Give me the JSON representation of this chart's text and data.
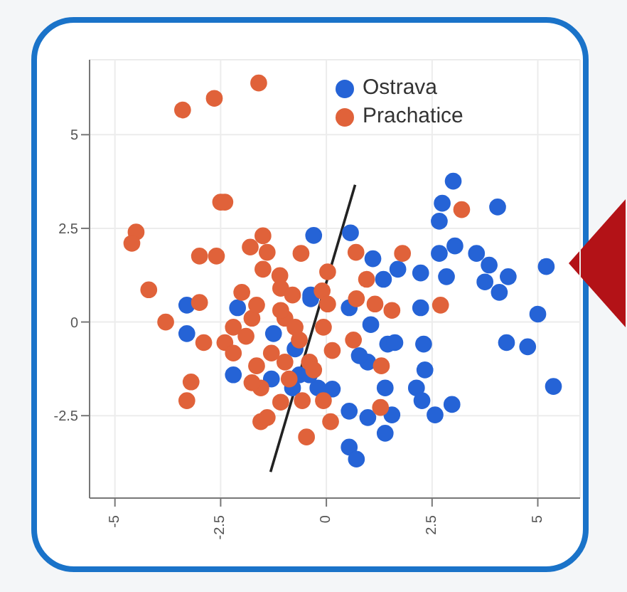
{
  "chart_data": {
    "type": "scatter",
    "legend": "top right",
    "grid": true,
    "marker": "circle",
    "xlim": [
      -5.6,
      6.0
    ],
    "ylim": [
      -4.7,
      7
    ],
    "xticks": [
      -5,
      -2.5,
      0,
      2.5,
      5
    ],
    "yticks": [
      -2.5,
      0,
      2.5,
      5
    ],
    "series": [
      {
        "name": "Ostrava",
        "color": "#2563d6",
        "x": [
          3.0,
          2.74,
          4.05,
          2.67,
          3.04,
          2.67,
          3.55,
          3.85,
          3.75,
          4.3,
          5.2,
          -0.3,
          0.57,
          1.1,
          1.69,
          1.35,
          2.23,
          2.84,
          4.09,
          2.23,
          5.0,
          4.26,
          4.76,
          5.37,
          2.3,
          2.33,
          2.13,
          2.26,
          2.97,
          2.57,
          1.39,
          1.55,
          1.39,
          0.54,
          0.71,
          0.54,
          0.98,
          1.05,
          0.54,
          1.45,
          1.62,
          0.98,
          0.78,
          0.14,
          -0.64,
          -3.3,
          -3.3,
          -2.1,
          -2.2,
          -1.3,
          -1.25,
          -0.74,
          -0.8,
          -0.37,
          -0.2,
          -0.4,
          -0.37
        ],
        "values": [
          3.76,
          3.17,
          3.07,
          2.69,
          2.03,
          1.83,
          1.83,
          1.52,
          1.07,
          1.21,
          1.48,
          2.31,
          2.38,
          1.69,
          1.41,
          1.14,
          1.31,
          1.21,
          0.79,
          0.38,
          0.21,
          -0.55,
          -0.66,
          -1.72,
          -0.59,
          -1.28,
          -1.76,
          -2.1,
          -2.2,
          -2.48,
          -1.76,
          -2.48,
          -2.97,
          -3.34,
          -3.66,
          -2.38,
          -2.55,
          -0.07,
          0.38,
          -0.59,
          -0.55,
          -1.07,
          -0.9,
          -1.79,
          -1.41,
          0.45,
          -0.31,
          0.38,
          -1.41,
          -1.52,
          -0.31,
          -0.72,
          -1.76,
          0.62,
          -1.76,
          -1.41,
          0.72
        ]
      },
      {
        "name": "Prachatice",
        "color": "#e0623a",
        "x": [
          -3.4,
          -2.65,
          -1.6,
          -2.5,
          -2.4,
          -4.5,
          -4.6,
          -3.0,
          -2.6,
          -4.2,
          -3.8,
          -2.9,
          -3.2,
          -3.3,
          -1.5,
          -1.8,
          -1.4,
          -1.5,
          -1.1,
          -1.08,
          -0.8,
          -0.6,
          -0.1,
          0.7,
          3.2,
          1.8,
          0.95,
          0.03,
          -3.0,
          -2.0,
          -1.76,
          -2.2,
          -2.4,
          -2.2,
          -1.9,
          -1.65,
          -1.55,
          -1.76,
          -1.08,
          -1.55,
          -1.4,
          -0.47,
          -0.98,
          -0.74,
          -0.64,
          -1.3,
          -0.98,
          -0.88,
          -0.57,
          -1.08,
          -1.65,
          -0.4,
          -0.07,
          1.15,
          1.55,
          0.71,
          2.7,
          1.3,
          1.28,
          0.1,
          0.64,
          0.03,
          -0.07,
          0.14,
          -0.3
        ],
        "values": [
          5.66,
          5.97,
          6.38,
          3.2,
          3.2,
          2.4,
          2.1,
          1.76,
          1.76,
          0.86,
          0,
          -0.55,
          -1.6,
          -2.1,
          2.3,
          2.0,
          1.86,
          1.41,
          1.24,
          0.9,
          0.72,
          1.83,
          0.83,
          1.86,
          3.0,
          1.83,
          1.14,
          1.34,
          0.52,
          0.79,
          0.1,
          -0.14,
          -0.55,
          -0.83,
          -0.38,
          -1.17,
          -1.76,
          -1.62,
          -2.14,
          -2.66,
          -2.55,
          -3.07,
          0.1,
          -0.14,
          -0.48,
          -0.83,
          -1.07,
          -1.52,
          -2.1,
          0.31,
          0.45,
          -1.07,
          -2.1,
          0.48,
          0.31,
          0.62,
          0.45,
          -1.17,
          -2.28,
          -2.66,
          -0.48,
          0.48,
          -0.14,
          -0.76,
          -1.28
        ]
      },
      {
        "type": "line",
        "marker": "none",
        "color": "#222222",
        "x": [
          -1.32,
          0.68
        ],
        "values": [
          -4.0,
          3.66
        ]
      }
    ]
  }
}
